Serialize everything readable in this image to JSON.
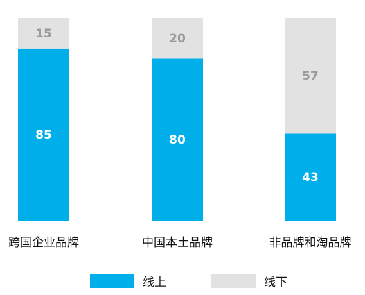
{
  "chart_data": {
    "type": "bar",
    "stacked": true,
    "categories": [
      "跨国企业品牌",
      "中国本土品牌",
      "非品牌和淘品牌"
    ],
    "series": [
      {
        "name": "线上",
        "values": [
          85,
          80,
          43
        ],
        "color": "#00aeea",
        "label_color": "#ffffff"
      },
      {
        "name": "线下",
        "values": [
          15,
          20,
          57
        ],
        "color": "#e2e2e3",
        "label_color": "#9b9b9b"
      }
    ],
    "ylim": [
      0,
      100
    ],
    "grid": false,
    "legend": "bottom"
  }
}
